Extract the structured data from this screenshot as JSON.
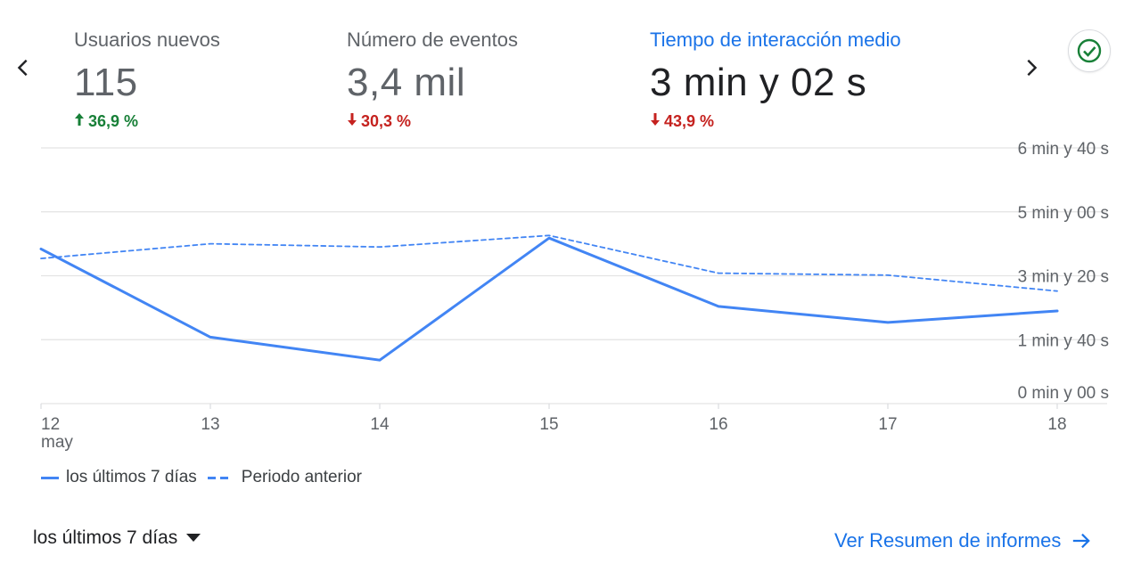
{
  "metrics": [
    {
      "label": "Usuarios nuevos",
      "value": "115",
      "change": "36,9 %",
      "direction": "up",
      "active": false
    },
    {
      "label": "Número de eventos",
      "value": "3,4 mil",
      "change": "30,3 %",
      "direction": "down",
      "active": false
    },
    {
      "label": "Tiempo de interacción medio",
      "value": "3 min y 02 s",
      "change": "43,9 %",
      "direction": "down",
      "active": true
    }
  ],
  "icons": {
    "prev": "chevron-left-icon",
    "next": "chevron-right-icon",
    "status": "check-circle-icon",
    "dropdown": "caret-down-icon",
    "link": "arrow-right-icon"
  },
  "colors": {
    "primary_series": "#4285f4",
    "accent": "#1a73e8",
    "positive": "#188038",
    "negative": "#c5221f",
    "check": "#188038"
  },
  "chart_data": {
    "type": "line",
    "x": [
      "12",
      "13",
      "14",
      "15",
      "16",
      "17",
      "18"
    ],
    "x_sublabels": [
      "may",
      "",
      "",
      "",
      "",
      "",
      ""
    ],
    "y_ticks": [
      {
        "value": 0,
        "label": "0 min y 00 s"
      },
      {
        "value": 100,
        "label": "1 min y 40 s"
      },
      {
        "value": 200,
        "label": "3 min y 20 s"
      },
      {
        "value": 300,
        "label": "5 min y 00 s"
      },
      {
        "value": 400,
        "label": "6 min y 40 s"
      }
    ],
    "ylim": [
      0,
      400
    ],
    "y_unit": "seconds",
    "series": [
      {
        "name": "los últimos 7 días",
        "style": "solid",
        "values": [
          242,
          104,
          68,
          259,
          152,
          127,
          145
        ]
      },
      {
        "name": "Periodo anterior",
        "style": "dashed",
        "values": [
          227,
          250,
          245,
          263,
          204,
          201,
          176
        ]
      }
    ],
    "grid": true,
    "legend_position": "bottom-left"
  },
  "footer": {
    "period_label": "los últimos 7 días",
    "report_link": "Ver Resumen de informes"
  }
}
